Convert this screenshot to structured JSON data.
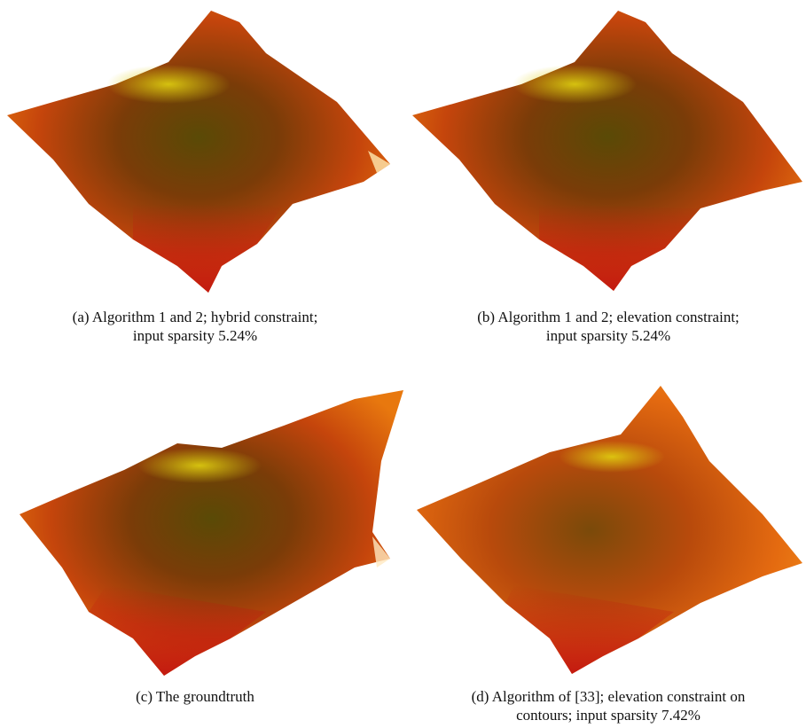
{
  "figures": [
    {
      "lines": [
        "(a) Algorithm 1 and 2; hybrid constraint;",
        "input sparsity 5.24%"
      ]
    },
    {
      "lines": [
        "(b) Algorithm 1 and 2; elevation constraint;",
        "input sparsity 5.24%"
      ]
    },
    {
      "lines": [
        "(c) The groundtruth"
      ]
    },
    {
      "lines": [
        "(d) Algorithm of [33]; elevation constraint on",
        "contours; input sparsity 7.42%"
      ]
    }
  ]
}
